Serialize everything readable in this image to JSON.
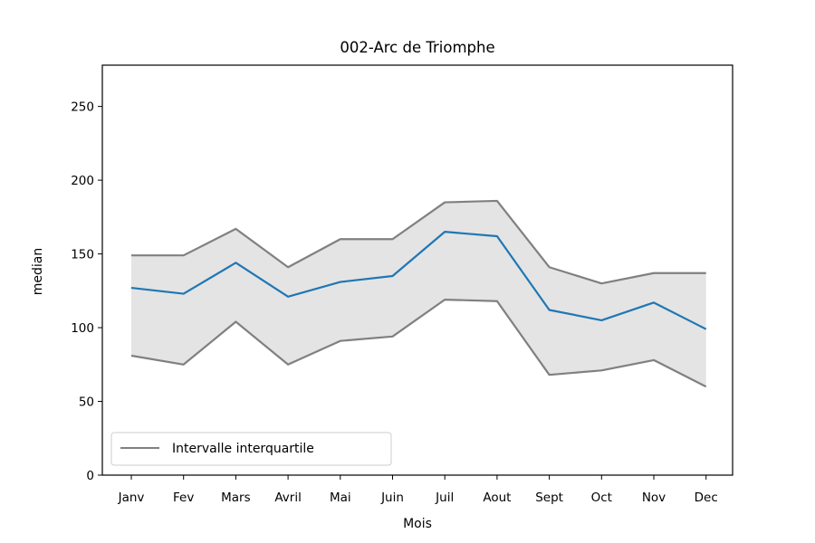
{
  "chart_data": {
    "type": "line",
    "title": "002-Arc de Triomphe",
    "xlabel": "Mois",
    "ylabel": "median",
    "categories": [
      "Janv",
      "Fev",
      "Mars",
      "Avril",
      "Mai",
      "Juin",
      "Juil",
      "Aout",
      "Sept",
      "Oct",
      "Nov",
      "Dec"
    ],
    "ylim": [
      0,
      278
    ],
    "yticks": [
      0,
      50,
      100,
      150,
      200,
      250
    ],
    "grid": false,
    "legend_position": "bottom-left",
    "legend_label": "Intervalle interquartile",
    "series": [
      {
        "role": "median",
        "values": [
          127,
          123,
          144,
          121,
          131,
          135,
          165,
          162,
          112,
          105,
          117,
          99
        ],
        "color": "#1f77b4"
      },
      {
        "role": "q3",
        "values": [
          149,
          149,
          167,
          141,
          160,
          160,
          185,
          186,
          141,
          130,
          137,
          137
        ],
        "color": "#808080"
      },
      {
        "role": "q1",
        "values": [
          81,
          75,
          104,
          75,
          91,
          94,
          119,
          118,
          68,
          71,
          78,
          60
        ],
        "color": "#808080"
      }
    ],
    "fill_color": "#e4e4e4"
  }
}
